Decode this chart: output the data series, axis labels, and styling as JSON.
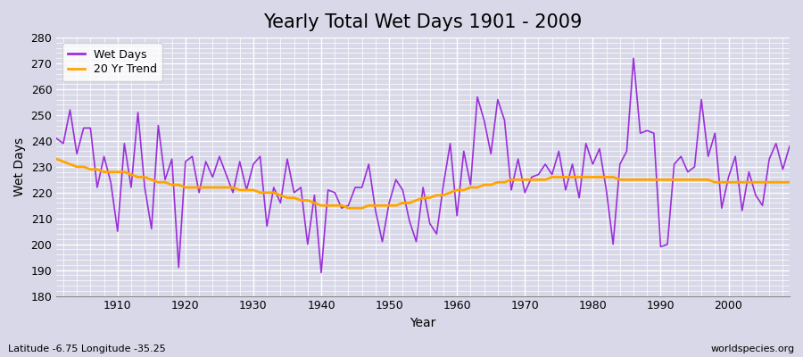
{
  "title": "Yearly Total Wet Days 1901 - 2009",
  "xlabel": "Year",
  "ylabel": "Wet Days",
  "subtitle": "Latitude -6.75 Longitude -35.25",
  "watermark": "worldspecies.org",
  "ylim": [
    180,
    280
  ],
  "xlim": [
    1901,
    2009
  ],
  "wet_days_color": "#9b30d9",
  "trend_color": "#FFA500",
  "figure_bg_color": "#d8d8e8",
  "plot_bg_color": "#d8d8e8",
  "years": [
    1901,
    1902,
    1903,
    1904,
    1905,
    1906,
    1907,
    1908,
    1909,
    1910,
    1911,
    1912,
    1913,
    1914,
    1915,
    1916,
    1917,
    1918,
    1919,
    1920,
    1921,
    1922,
    1923,
    1924,
    1925,
    1926,
    1927,
    1928,
    1929,
    1930,
    1931,
    1932,
    1933,
    1934,
    1935,
    1936,
    1937,
    1938,
    1939,
    1940,
    1941,
    1942,
    1943,
    1944,
    1945,
    1946,
    1947,
    1948,
    1949,
    1950,
    1951,
    1952,
    1953,
    1954,
    1955,
    1956,
    1957,
    1958,
    1959,
    1960,
    1961,
    1962,
    1963,
    1964,
    1965,
    1966,
    1967,
    1968,
    1969,
    1970,
    1971,
    1972,
    1973,
    1974,
    1975,
    1976,
    1977,
    1978,
    1979,
    1980,
    1981,
    1982,
    1983,
    1984,
    1985,
    1986,
    1987,
    1988,
    1989,
    1990,
    1991,
    1992,
    1993,
    1994,
    1995,
    1996,
    1997,
    1998,
    1999,
    2000,
    2001,
    2002,
    2003,
    2004,
    2005,
    2006,
    2007,
    2008,
    2009
  ],
  "wet_days": [
    241,
    239,
    252,
    235,
    245,
    245,
    222,
    234,
    224,
    205,
    239,
    222,
    251,
    222,
    206,
    246,
    225,
    233,
    191,
    232,
    234,
    220,
    232,
    226,
    234,
    227,
    220,
    232,
    221,
    231,
    234,
    207,
    222,
    216,
    233,
    220,
    222,
    200,
    219,
    189,
    221,
    220,
    214,
    215,
    222,
    222,
    231,
    213,
    201,
    216,
    225,
    221,
    209,
    201,
    222,
    208,
    204,
    223,
    239,
    211,
    236,
    223,
    257,
    248,
    235,
    256,
    248,
    221,
    233,
    220,
    226,
    227,
    231,
    227,
    236,
    221,
    231,
    218,
    239,
    231,
    237,
    221,
    200,
    231,
    236,
    272,
    243,
    244,
    243,
    199,
    200,
    231,
    234,
    228,
    230,
    256,
    234,
    243,
    214,
    226,
    234,
    213,
    228,
    219,
    215,
    233,
    239,
    229,
    238
  ],
  "trend": [
    233,
    232,
    231,
    230,
    230,
    229,
    229,
    228,
    228,
    228,
    228,
    227,
    226,
    226,
    225,
    224,
    224,
    223,
    223,
    222,
    222,
    222,
    222,
    222,
    222,
    222,
    222,
    221,
    221,
    221,
    220,
    220,
    220,
    219,
    218,
    218,
    217,
    217,
    216,
    215,
    215,
    215,
    215,
    214,
    214,
    214,
    215,
    215,
    215,
    215,
    215,
    216,
    216,
    217,
    218,
    218,
    219,
    219,
    220,
    221,
    221,
    222,
    222,
    223,
    223,
    224,
    224,
    225,
    225,
    225,
    225,
    225,
    225,
    226,
    226,
    226,
    226,
    226,
    226,
    226,
    226,
    226,
    226,
    225,
    225,
    225,
    225,
    225,
    225,
    225,
    225,
    225,
    225,
    225,
    225,
    225,
    225,
    224,
    224,
    224,
    224,
    224,
    224,
    224,
    224,
    224,
    224,
    224,
    224
  ]
}
